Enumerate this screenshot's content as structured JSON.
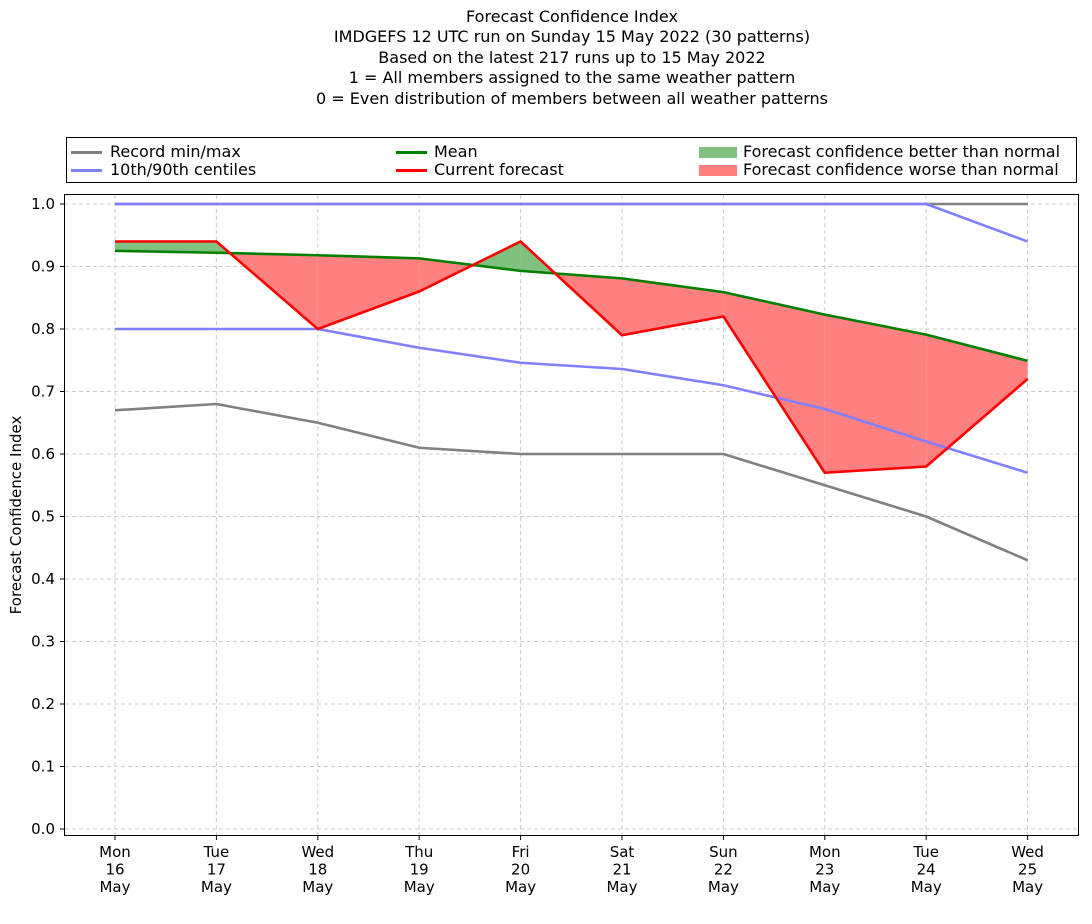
{
  "chart_data": {
    "type": "line",
    "title_lines": [
      "Forecast Confidence Index",
      "IMDGEFS 12 UTC run on Sunday 15 May 2022 (30 patterns)",
      "Based on the latest 217 runs up to 15 May 2022",
      "1 = All members assigned to the same weather pattern",
      "0 = Even distribution of members between all weather patterns"
    ],
    "ylabel": "Forecast Confidence Index",
    "ylim": [
      0,
      1.0
    ],
    "yticks": [
      "0.0",
      "0.1",
      "0.2",
      "0.3",
      "0.4",
      "0.5",
      "0.6",
      "0.7",
      "0.8",
      "0.9",
      "1.0"
    ],
    "grid": true,
    "legend_position": "top",
    "categories": [
      [
        "Mon",
        "16",
        "May"
      ],
      [
        "Tue",
        "17",
        "May"
      ],
      [
        "Wed",
        "18",
        "May"
      ],
      [
        "Thu",
        "19",
        "May"
      ],
      [
        "Fri",
        "20",
        "May"
      ],
      [
        "Sat",
        "21",
        "May"
      ],
      [
        "Sun",
        "22",
        "May"
      ],
      [
        "Mon",
        "23",
        "May"
      ],
      [
        "Tue",
        "24",
        "May"
      ],
      [
        "Wed",
        "25",
        "May"
      ]
    ],
    "series": [
      {
        "name": "Record min/max",
        "role": "record_max",
        "color": "#808080",
        "values": [
          1.0,
          1.0,
          1.0,
          1.0,
          1.0,
          1.0,
          1.0,
          1.0,
          1.0,
          1.0
        ]
      },
      {
        "role": "record_min",
        "color": "#808080",
        "values": [
          0.67,
          0.68,
          0.65,
          0.61,
          0.6,
          0.6,
          0.6,
          0.55,
          0.5,
          0.43
        ]
      },
      {
        "name": "10th/90th centiles",
        "role": "p90",
        "color": "#8080ff",
        "values": [
          1.0,
          1.0,
          1.0,
          1.0,
          1.0,
          1.0,
          1.0,
          1.0,
          1.0,
          0.94
        ]
      },
      {
        "role": "p10",
        "color": "#8080ff",
        "values": [
          0.8,
          0.8,
          0.8,
          0.77,
          0.746,
          0.736,
          0.71,
          0.672,
          0.62,
          0.57
        ]
      },
      {
        "name": "Mean",
        "role": "mean",
        "color": "#008000",
        "values": [
          0.925,
          0.922,
          0.918,
          0.913,
          0.893,
          0.881,
          0.859,
          0.823,
          0.791,
          0.749
        ]
      },
      {
        "name": "Current forecast",
        "role": "current",
        "color": "#ff0000",
        "values": [
          0.94,
          0.94,
          0.8,
          0.86,
          0.94,
          0.79,
          0.82,
          0.57,
          0.58,
          0.72
        ]
      }
    ],
    "fills": [
      {
        "name": "Forecast confidence better than normal",
        "color": "#80c080"
      },
      {
        "name": "Forecast confidence worse than normal",
        "color": "#ff8080"
      }
    ]
  },
  "legend": {
    "record": "Record min/max",
    "centiles": "10th/90th centiles",
    "mean": "Mean",
    "current": "Current forecast",
    "better": "Forecast confidence better than normal",
    "worse": "Forecast confidence worse than normal"
  }
}
